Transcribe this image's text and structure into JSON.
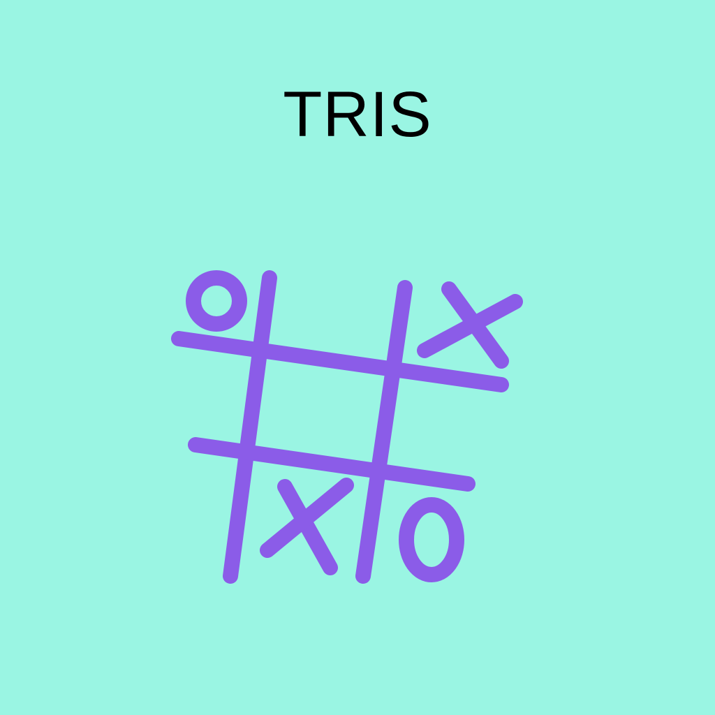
{
  "app": {
    "title": "TRIS"
  },
  "colors": {
    "background": "#9AF5E3",
    "accent": "#8B5CE8",
    "title_text": "#000000"
  },
  "logo": {
    "icon": "tic-tac-toe-icon",
    "board": [
      [
        "O",
        "",
        "X"
      ],
      [
        "",
        "",
        ""
      ],
      [
        "",
        "X",
        "O"
      ]
    ]
  }
}
